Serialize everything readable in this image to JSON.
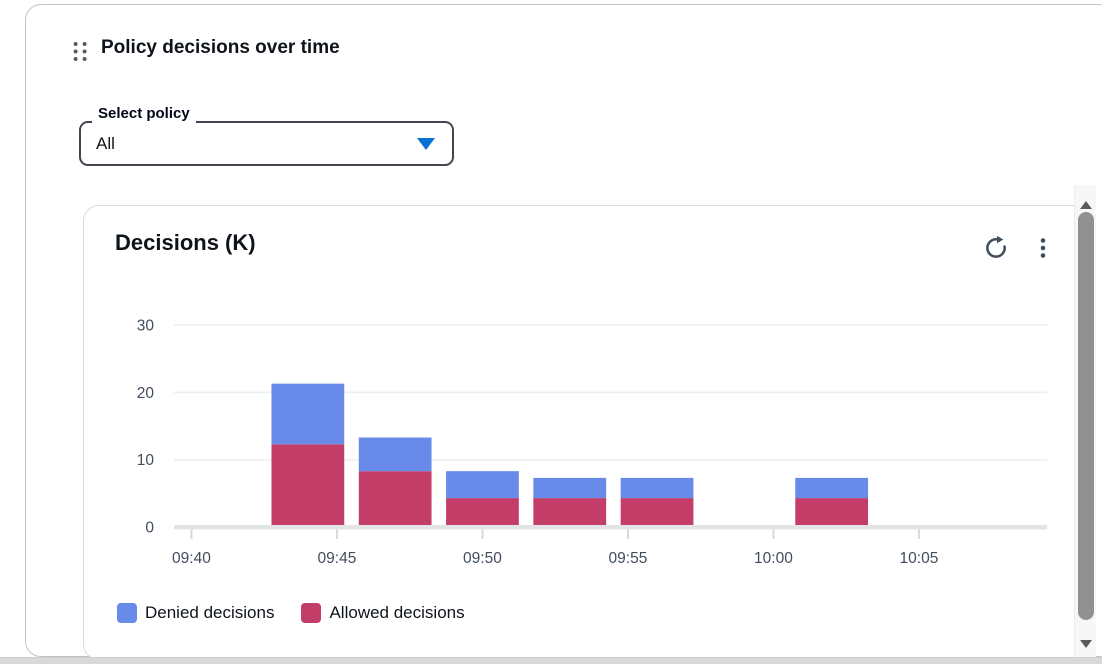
{
  "board_item": {
    "title": "Policy decisions over time",
    "policy_select": {
      "label": "Select policy",
      "value": "All"
    }
  },
  "chart_card": {
    "title": "Decisions (K)"
  },
  "icons": {
    "drag_handle": "drag-handle",
    "refresh": "refresh",
    "menu": "vertical-ellipsis",
    "select_caret": "caret-down-filled"
  },
  "colors": {
    "denied_blue": "#688AE8",
    "allowed_red": "#C33D69",
    "accent_blue": "#0972D3"
  },
  "chart_data": {
    "type": "bar",
    "stacked": true,
    "title": "Decisions (K)",
    "grid": true,
    "legend_position": "bottom",
    "x_axis": {
      "tick_labels": [
        "09:40",
        "09:45",
        "09:50",
        "09:55",
        "10:00",
        "10:05"
      ],
      "tick_minutes": [
        40,
        45,
        50,
        55,
        60,
        65
      ],
      "range_minutes": [
        39.4,
        69.4
      ]
    },
    "y_axis": {
      "ticks": [
        0,
        10,
        20,
        30
      ],
      "tick_labels": [
        "0",
        "10",
        "20",
        "30"
      ],
      "range": [
        0,
        33
      ]
    },
    "bar_width_minutes": 2.5,
    "categories": [
      {
        "time": "09:44",
        "minute": 44
      },
      {
        "time": "09:47",
        "minute": 47
      },
      {
        "time": "09:50",
        "minute": 50
      },
      {
        "time": "09:53",
        "minute": 53
      },
      {
        "time": "09:56",
        "minute": 56
      },
      {
        "time": "10:02",
        "minute": 62
      }
    ],
    "series": [
      {
        "name": "Allowed decisions",
        "key": "allowed",
        "color": "#C33D69",
        "values": [
          12,
          8,
          4,
          4,
          4,
          4
        ]
      },
      {
        "name": "Denied decisions",
        "key": "denied",
        "color": "#688AE8",
        "values": [
          9,
          5,
          4,
          3,
          3,
          3
        ]
      }
    ],
    "totals": [
      21,
      13,
      8,
      7,
      7,
      7
    ],
    "legend": [
      {
        "label": "Denied decisions",
        "color": "#688AE8"
      },
      {
        "label": "Allowed decisions",
        "color": "#C33D69"
      }
    ]
  }
}
